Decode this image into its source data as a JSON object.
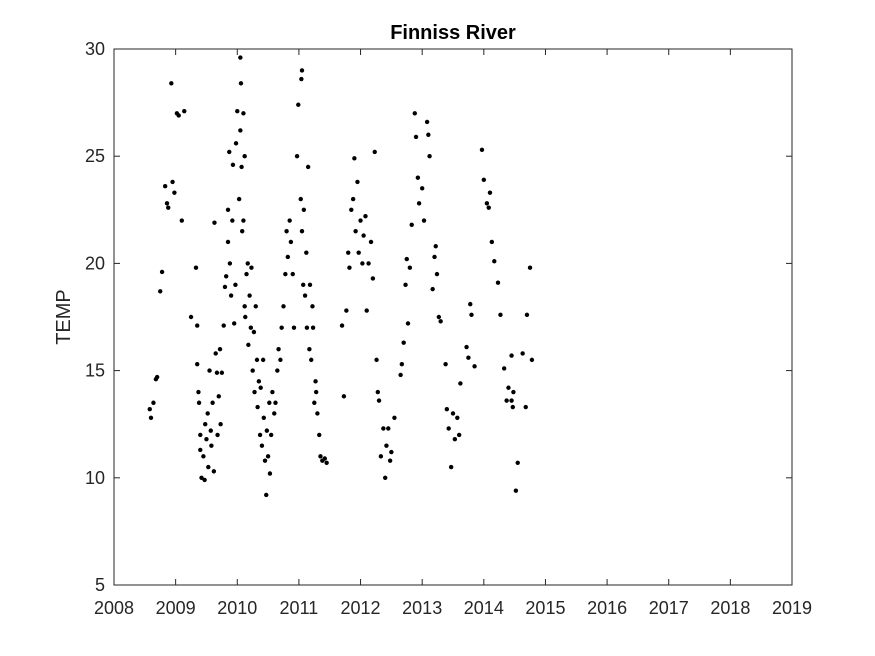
{
  "chart_data": {
    "type": "scatter",
    "title": "Finniss River",
    "ylabel": "TEMP",
    "color": "#000000",
    "xlim": [
      2008,
      2019
    ],
    "xticks": [
      2008,
      2009,
      2010,
      2011,
      2012,
      2013,
      2014,
      2015,
      2016,
      2017,
      2018,
      2019
    ],
    "ylim": [
      5,
      30
    ],
    "yticks": [
      5,
      10,
      15,
      20,
      25,
      30
    ],
    "grid": false,
    "x": [
      2008.58,
      2008.6,
      2008.64,
      2008.68,
      2008.7,
      2008.75,
      2008.78,
      2008.83,
      2008.86,
      2008.88,
      2008.93,
      2008.95,
      2008.98,
      2009.02,
      2009.05,
      2009.14,
      2009.1,
      2009.25,
      2009.33,
      2009.35,
      2009.35,
      2009.37,
      2009.38,
      2009.4,
      2009.4,
      2009.42,
      2009.45,
      2009.47,
      2009.48,
      2009.5,
      2009.52,
      2009.53,
      2009.55,
      2009.57,
      2009.58,
      2009.6,
      2009.62,
      2009.63,
      2009.65,
      2009.67,
      2009.68,
      2009.7,
      2009.72,
      2009.73,
      2009.75,
      2009.78,
      2009.8,
      2009.82,
      2009.85,
      2009.85,
      2009.87,
      2009.88,
      2009.9,
      2009.92,
      2009.93,
      2009.95,
      2009.97,
      2009.98,
      2010.0,
      2010.05,
      2010.06,
      2010.03,
      2010.05,
      2010.07,
      2010.08,
      2010.1,
      2010.1,
      2010.12,
      2010.12,
      2010.13,
      2010.15,
      2010.17,
      2010.18,
      2010.2,
      2010.22,
      2010.23,
      2010.25,
      2010.27,
      2010.28,
      2010.3,
      2010.32,
      2010.33,
      2010.35,
      2010.37,
      2010.38,
      2010.4,
      2010.42,
      2010.43,
      2010.45,
      2010.47,
      2010.48,
      2010.5,
      2010.52,
      2010.53,
      2010.55,
      2010.57,
      2010.6,
      2010.62,
      2010.65,
      2010.67,
      2010.7,
      2010.72,
      2010.75,
      2010.78,
      2010.8,
      2010.82,
      2010.85,
      2010.87,
      2010.9,
      2010.92,
      2010.97,
      2010.99,
      2011.04,
      2011.05,
      2011.03,
      2011.05,
      2011.07,
      2011.08,
      2011.1,
      2011.12,
      2011.13,
      2011.15,
      2011.17,
      2011.18,
      2011.2,
      2011.22,
      2011.23,
      2011.25,
      2011.27,
      2011.28,
      2011.3,
      2011.33,
      2011.35,
      2011.38,
      2011.42,
      2011.45,
      2011.7,
      2011.73,
      2011.77,
      2011.8,
      2011.82,
      2011.85,
      2011.88,
      2011.9,
      2011.92,
      2011.95,
      2011.97,
      2012.0,
      2012.03,
      2012.05,
      2012.08,
      2012.1,
      2012.13,
      2012.17,
      2012.2,
      2012.23,
      2012.26,
      2012.28,
      2012.3,
      2012.33,
      2012.37,
      2012.4,
      2012.42,
      2012.45,
      2012.48,
      2012.5,
      2012.55,
      2012.65,
      2012.67,
      2012.7,
      2012.73,
      2012.75,
      2012.77,
      2012.8,
      2012.83,
      2012.88,
      2012.9,
      2012.93,
      2012.95,
      2013.0,
      2013.03,
      2013.08,
      2013.1,
      2013.12,
      2013.17,
      2013.2,
      2013.22,
      2013.24,
      2013.27,
      2013.3,
      2013.38,
      2013.4,
      2013.43,
      2013.47,
      2013.5,
      2013.53,
      2013.57,
      2013.6,
      2013.62,
      2013.72,
      2013.75,
      2013.78,
      2013.8,
      2013.85,
      2013.97,
      2014.0,
      2014.05,
      2014.08,
      2014.1,
      2014.13,
      2014.17,
      2014.23,
      2014.27,
      2014.33,
      2014.37,
      2014.4,
      2014.45,
      2014.48,
      2014.52,
      2014.55,
      2014.63,
      2014.68,
      2014.7,
      2014.75,
      2014.78,
      2014.45,
      2014.47
    ],
    "values": [
      13.2,
      12.8,
      13.5,
      14.6,
      14.7,
      18.7,
      19.6,
      23.6,
      22.8,
      22.6,
      28.4,
      23.8,
      23.3,
      27.0,
      26.9,
      27.1,
      22.0,
      17.5,
      19.8,
      17.1,
      15.3,
      14.0,
      13.5,
      12.0,
      11.3,
      10.0,
      11.0,
      9.9,
      12.5,
      11.8,
      13.0,
      10.5,
      15.0,
      12.2,
      11.5,
      13.5,
      10.3,
      21.9,
      15.8,
      14.9,
      12.0,
      13.8,
      16.0,
      12.5,
      14.9,
      17.1,
      18.9,
      19.4,
      22.5,
      21.0,
      25.2,
      20.0,
      18.5,
      22.0,
      24.6,
      17.2,
      19.0,
      25.6,
      27.1,
      29.6,
      28.4,
      23.0,
      26.2,
      24.5,
      21.5,
      27.0,
      22.0,
      18.0,
      25.0,
      17.5,
      19.5,
      20.0,
      16.2,
      18.5,
      17.0,
      19.8,
      15.0,
      16.8,
      14.0,
      18.0,
      15.5,
      13.3,
      14.5,
      12.0,
      14.2,
      11.5,
      15.5,
      12.8,
      10.8,
      9.2,
      12.2,
      11.0,
      13.5,
      10.2,
      12.0,
      14.0,
      13.0,
      13.5,
      15.0,
      16.0,
      15.5,
      17.0,
      18.0,
      19.5,
      21.5,
      20.3,
      22.0,
      21.0,
      19.5,
      17.0,
      25.0,
      27.4,
      28.6,
      29.0,
      23.0,
      21.5,
      19.0,
      22.5,
      18.5,
      20.5,
      17.0,
      24.5,
      16.0,
      19.0,
      15.5,
      18.0,
      17.0,
      13.5,
      14.5,
      14.0,
      13.0,
      12.0,
      11.0,
      10.8,
      10.9,
      10.7,
      17.1,
      13.8,
      17.8,
      20.5,
      19.8,
      22.5,
      23.0,
      24.9,
      21.5,
      23.8,
      20.5,
      22.0,
      20.0,
      21.3,
      22.2,
      17.8,
      20.0,
      21.0,
      19.3,
      25.2,
      15.5,
      14.0,
      13.6,
      11.0,
      12.3,
      10.0,
      11.5,
      12.3,
      10.8,
      11.2,
      12.8,
      14.8,
      15.3,
      16.3,
      19.0,
      20.2,
      17.2,
      19.8,
      21.8,
      27.0,
      25.9,
      24.0,
      22.8,
      23.5,
      22.0,
      26.6,
      26.0,
      25.0,
      18.8,
      20.3,
      20.8,
      19.5,
      17.5,
      17.3,
      15.3,
      13.2,
      12.3,
      10.5,
      13.0,
      11.8,
      12.8,
      12.0,
      14.4,
      16.1,
      15.6,
      18.1,
      17.6,
      15.2,
      25.3,
      23.9,
      22.8,
      22.6,
      23.3,
      21.0,
      20.1,
      19.1,
      17.6,
      15.1,
      13.6,
      14.2,
      13.6,
      14.0,
      9.4,
      10.7,
      15.8,
      13.3,
      17.6,
      19.8,
      15.5,
      15.7,
      13.3
    ]
  }
}
